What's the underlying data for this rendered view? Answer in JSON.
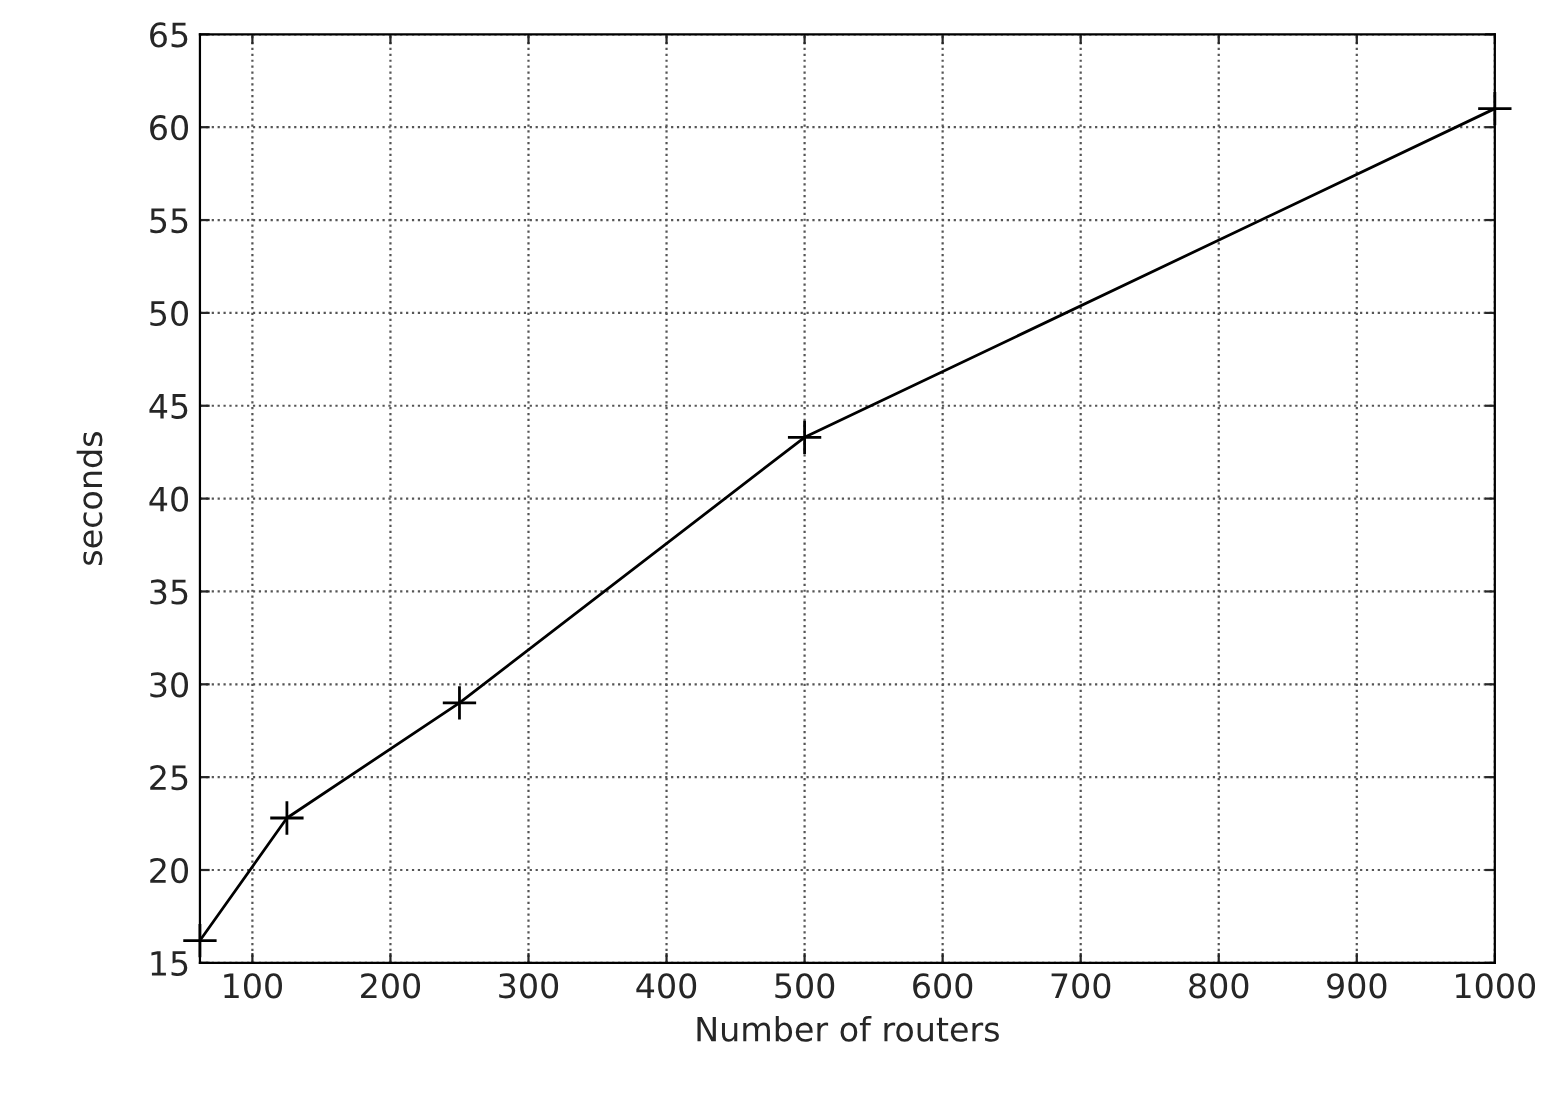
{
  "chart_data": {
    "type": "line",
    "xlabel": "Number of routers",
    "ylabel": "seconds",
    "x": [
      62,
      125,
      250,
      500,
      1000
    ],
    "series": [
      {
        "color": "#000000",
        "values": [
          16.2,
          22.8,
          29.0,
          43.3,
          61.0
        ]
      }
    ],
    "xlim": [
      62,
      1000
    ],
    "xticks": [
      100,
      200,
      300,
      400,
      500,
      600,
      700,
      800,
      900,
      1000
    ],
    "ylim": [
      15,
      65
    ],
    "yticks": [
      15,
      20,
      25,
      30,
      35,
      40,
      45,
      50,
      55,
      60,
      65
    ],
    "grid": true,
    "marker": "cross",
    "line_style": "solid"
  }
}
